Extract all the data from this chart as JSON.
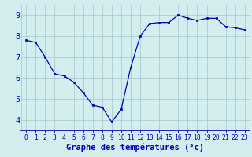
{
  "x": [
    0,
    1,
    2,
    3,
    4,
    5,
    6,
    7,
    8,
    9,
    10,
    11,
    12,
    13,
    14,
    15,
    16,
    17,
    18,
    19,
    20,
    21,
    22,
    23
  ],
  "y": [
    7.8,
    7.7,
    7.0,
    6.2,
    6.1,
    5.8,
    5.3,
    4.7,
    4.6,
    3.9,
    4.5,
    6.5,
    8.0,
    8.6,
    8.65,
    8.65,
    9.0,
    8.85,
    8.75,
    8.85,
    8.85,
    8.45,
    8.4,
    8.3
  ],
  "xlabel": "Graphe des températures (°c)",
  "ylabel_ticks": [
    4,
    5,
    6,
    7,
    8,
    9
  ],
  "ylim": [
    3.5,
    9.5
  ],
  "xlim": [
    -0.5,
    23.5
  ],
  "bg_color": "#d4eef0",
  "line_color": "#0000bb",
  "marker_color": "#0000bb",
  "grid_color": "#a8cdd0",
  "xlabel_color": "#0000bb",
  "tick_color": "#0000bb",
  "xlabel_fontsize": 7.5,
  "ytick_fontsize": 7.5,
  "xtick_fontsize": 5.8
}
